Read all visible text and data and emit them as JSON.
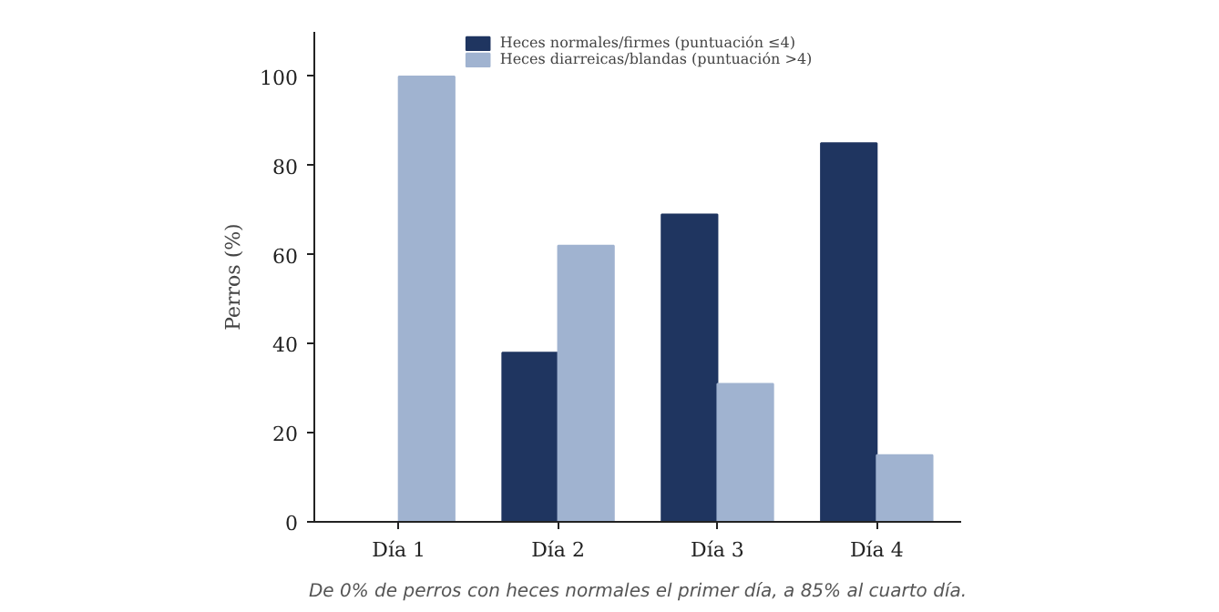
{
  "chart_data": {
    "type": "bar",
    "ylabel": "Perros (%)",
    "categories": [
      "Día 1",
      "Día 2",
      "Día 3",
      "Día 4"
    ],
    "series": [
      {
        "name": "Heces normales/firmes (puntuación ≤4)",
        "color": "#1f3560",
        "values": [
          0,
          38,
          69,
          85
        ]
      },
      {
        "name": "Heces diarreicas/blandas (puntuación >4)",
        "color": "#a0b3d0",
        "values": [
          100,
          62,
          31,
          15
        ]
      }
    ],
    "ylim": [
      0,
      110
    ],
    "yticks": [
      0,
      20,
      40,
      60,
      80,
      100
    ],
    "grid": false,
    "legend": "top",
    "annotations": [
      "De 0% de perros con heces normales el primer día, a 85% al cuarto día."
    ]
  }
}
